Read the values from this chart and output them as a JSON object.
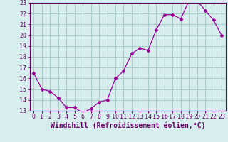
{
  "x": [
    0,
    1,
    2,
    3,
    4,
    5,
    6,
    7,
    8,
    9,
    10,
    11,
    12,
    13,
    14,
    15,
    16,
    17,
    18,
    19,
    20,
    21,
    22,
    23
  ],
  "y": [
    16.5,
    15.0,
    14.8,
    14.2,
    13.3,
    13.3,
    12.8,
    13.2,
    13.8,
    14.0,
    16.0,
    16.7,
    18.3,
    18.8,
    18.6,
    20.5,
    21.9,
    21.9,
    21.5,
    23.2,
    23.2,
    22.3,
    21.4,
    20.0
  ],
  "line_color": "#990099",
  "marker": "D",
  "marker_size": 2.5,
  "bg_color": "#d8eeee",
  "grid_color": "#aacccc",
  "xlabel": "Windchill (Refroidissement éolien,°C)",
  "ylim": [
    13,
    23
  ],
  "xlim": [
    -0.5,
    23.5
  ],
  "yticks": [
    13,
    14,
    15,
    16,
    17,
    18,
    19,
    20,
    21,
    22,
    23
  ],
  "xticks": [
    0,
    1,
    2,
    3,
    4,
    5,
    6,
    7,
    8,
    9,
    10,
    11,
    12,
    13,
    14,
    15,
    16,
    17,
    18,
    19,
    20,
    21,
    22,
    23
  ],
  "tick_color": "#660066",
  "label_fontsize": 7,
  "tick_fontsize": 6,
  "spine_color": "#660066"
}
